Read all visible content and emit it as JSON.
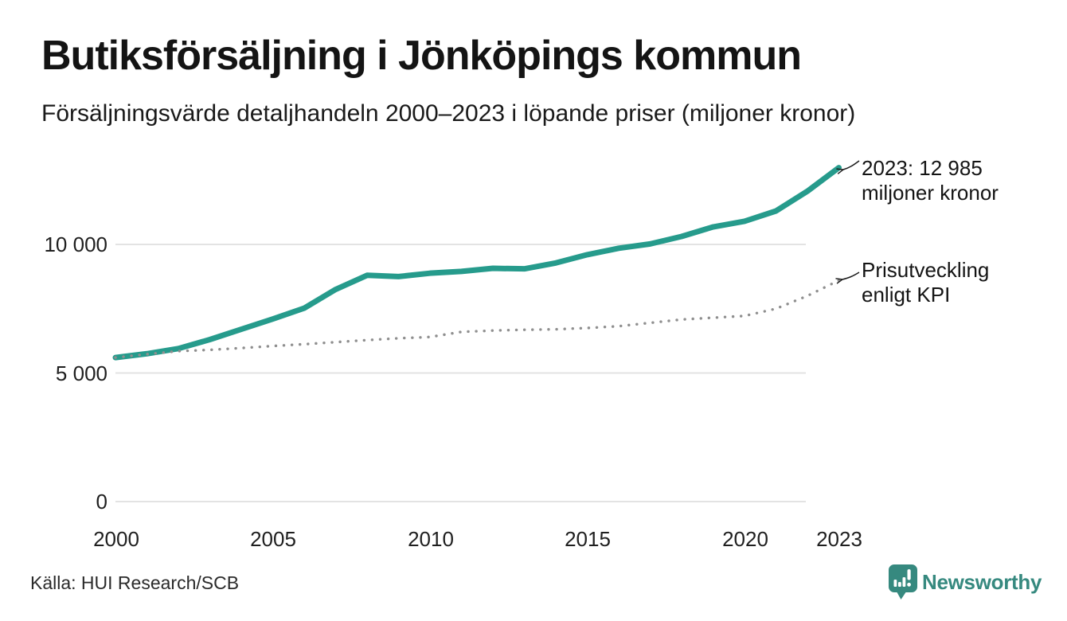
{
  "chart_data": {
    "type": "line",
    "title": "Butiksförsäljning i Jönköpings kommun",
    "subtitle": "Försäljningsvärde detaljhandeln 2000–2023 i löpande priser (miljoner kronor)",
    "xlabel": "",
    "ylabel": "miljoner kronor",
    "ylim": [
      0,
      13500
    ],
    "xlim": [
      2000,
      2023
    ],
    "grid": "horizontal",
    "legend_position": "inline-annotations",
    "x": [
      2000,
      2001,
      2002,
      2003,
      2004,
      2005,
      2006,
      2007,
      2008,
      2009,
      2010,
      2011,
      2012,
      2013,
      2014,
      2015,
      2016,
      2017,
      2018,
      2019,
      2020,
      2021,
      2022,
      2023
    ],
    "series": [
      {
        "name": "Butiksförsäljning i löpande priser",
        "style": "solid",
        "color": "#269b8c",
        "values": [
          5600,
          5750,
          5950,
          6300,
          6700,
          7100,
          7520,
          8250,
          8800,
          8750,
          8880,
          8950,
          9070,
          9050,
          9280,
          9600,
          9850,
          10020,
          10310,
          10680,
          10900,
          11300,
          12070,
          12985
        ]
      },
      {
        "name": "Prisutveckling enligt KPI",
        "style": "dotted",
        "color": "#8f8f8f",
        "values": [
          5600,
          5730,
          5850,
          5900,
          5970,
          6050,
          6120,
          6200,
          6280,
          6350,
          6400,
          6600,
          6650,
          6680,
          6700,
          6750,
          6820,
          6950,
          7080,
          7150,
          7220,
          7500,
          8000,
          8600
        ]
      }
    ],
    "yticks": [
      {
        "value": 0,
        "label": "0"
      },
      {
        "value": 5000,
        "label": "5 000"
      },
      {
        "value": 10000,
        "label": "10 000"
      }
    ],
    "xticks": [
      {
        "value": 2000,
        "label": "2000"
      },
      {
        "value": 2005,
        "label": "2005"
      },
      {
        "value": 2010,
        "label": "2010"
      },
      {
        "value": 2015,
        "label": "2015"
      },
      {
        "value": 2020,
        "label": "2020"
      },
      {
        "value": 2023,
        "label": "2023"
      }
    ],
    "annotations": [
      {
        "line1": "2023: 12 985",
        "line2": "miljoner kronor",
        "series": "Butiksförsäljning i löpande priser",
        "year": 2023,
        "value": 12985
      },
      {
        "line1": "Prisutveckling",
        "line2": "enligt KPI",
        "series": "Prisutveckling enligt KPI",
        "year": 2023
      }
    ]
  },
  "footer": {
    "source_label": "Källa: HUI Research/SCB",
    "brand_name": "Newsworthy"
  },
  "colors": {
    "accent_teal": "#269b8c",
    "kpi_gray": "#8f8f8f",
    "grid": "#e3e3e3",
    "brand_teal": "#36897f",
    "text": "#141414"
  }
}
